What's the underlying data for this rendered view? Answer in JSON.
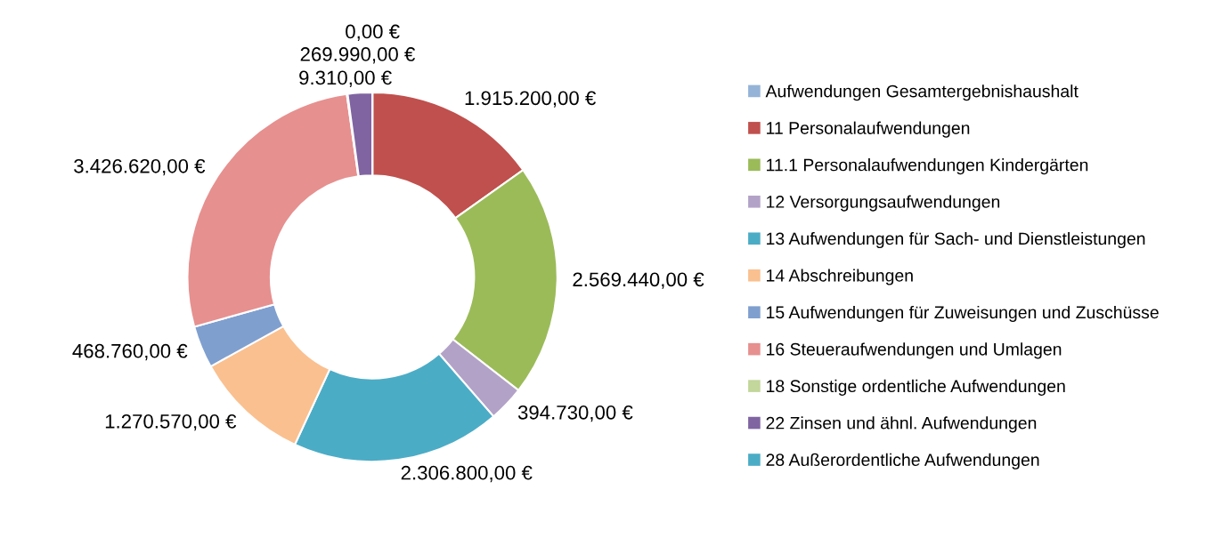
{
  "chart_data": {
    "type": "donut",
    "categories": [
      "Aufwendungen Gesamtergebnishaushalt",
      "11 Personalaufwendungen",
      "11.1 Personalaufwendungen Kindergärten",
      "12 Versorgungsaufwendungen",
      "13 Aufwendungen für Sach- und Dienstleistungen",
      "14 Abschreibungen",
      "15 Aufwendungen für Zuweisungen und Zuschüsse",
      "16 Steueraufwendungen und Umlagen",
      "18 Sonstige ordentliche Aufwendungen",
      "22 Zinsen und ähnl. Aufwendungen",
      "28 Außerordentliche Aufwendungen"
    ],
    "values": [
      null,
      1915200,
      2569440,
      394730,
      2306800,
      1270570,
      468760,
      3426620,
      9310,
      269990,
      0
    ],
    "value_labels": [
      null,
      "1.915.200,00 €",
      "2.569.440,00 €",
      "394.730,00 €",
      "2.306.800,00 €",
      "1.270.570,00 €",
      "468.760,00 €",
      "3.426.620,00 €",
      "9.310,00 €",
      "269.990,00 €",
      "0,00 €"
    ],
    "colors": [
      "#95b3d7",
      "#c0504d",
      "#9bbb59",
      "#b3a2c7",
      "#4bacc6",
      "#fac090",
      "#7f9fcf",
      "#e6908f",
      "#c3d69b",
      "#8064a2",
      "#4bacc6"
    ],
    "legend": "right"
  }
}
